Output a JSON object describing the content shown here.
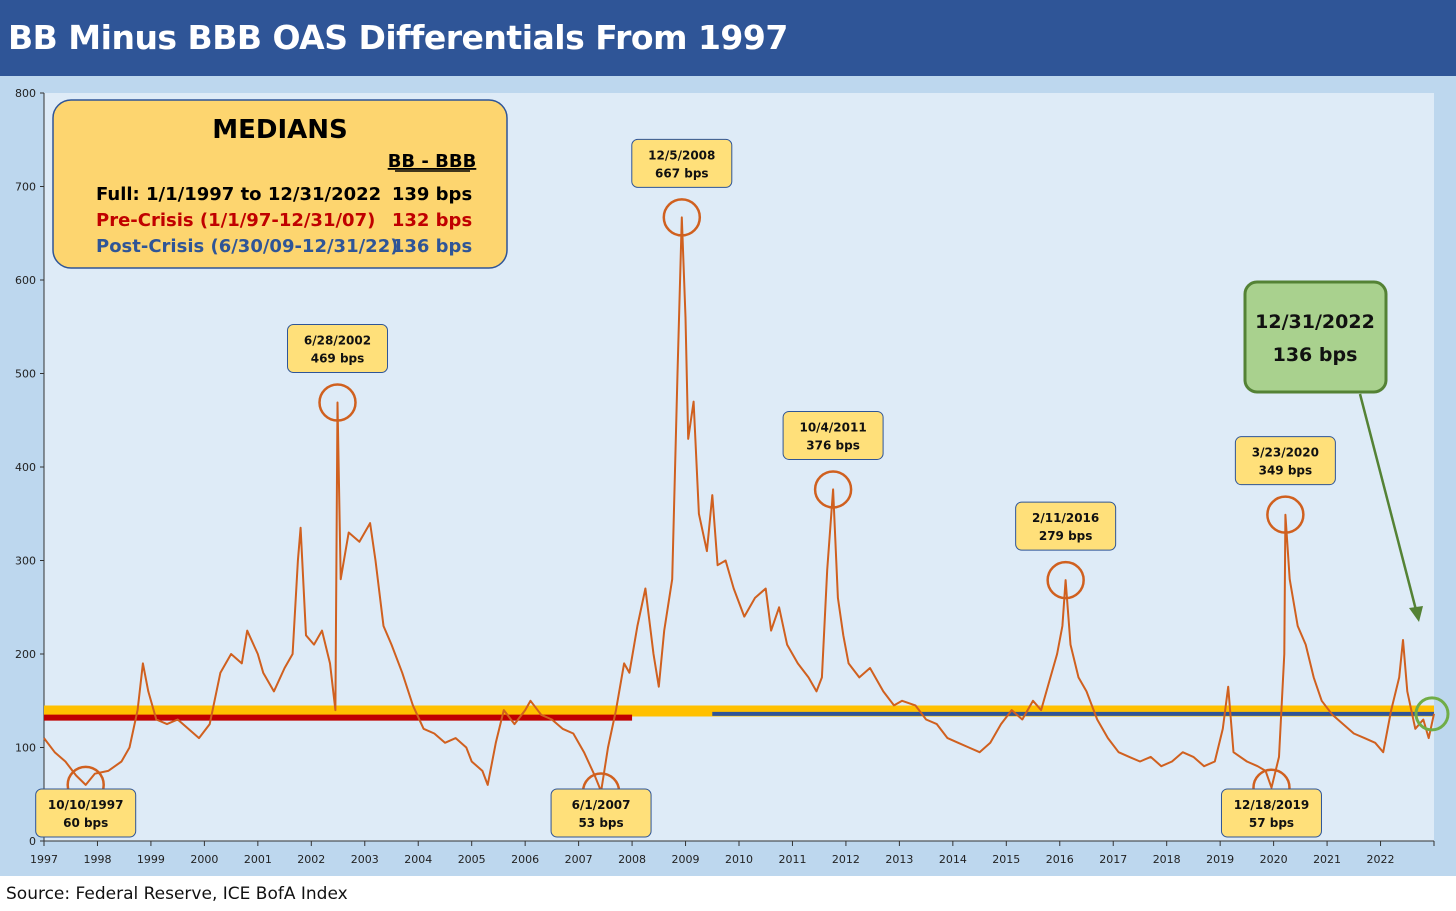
{
  "title": "BB Minus BBB OAS Differentials From 1997",
  "source": "Source: Federal Reserve, ICE BofA Index",
  "colors": {
    "title_bar": "#2f5597",
    "frame": "#bdd7ee",
    "plot_bg": "#deebf7",
    "series": "#d0601f",
    "full_median": "#ffc000",
    "pre_crisis": "#c00000",
    "post_crisis": "#2f5597",
    "callout_fill": "#ffe07a",
    "final_box": "#a9d18e",
    "final_border": "#548235"
  },
  "medians_box": {
    "title": "MEDIANS",
    "column_header": "BB - BBB",
    "rows": [
      {
        "label": "Full: 1/1/1997 to 12/31/2022",
        "value": "139 bps",
        "color": "#000000"
      },
      {
        "label": "Pre-Crisis (1/1/97-12/31/07)",
        "value": "132 bps",
        "color": "#c00000"
      },
      {
        "label": "Post-Crisis (6/30/09-12/31/22)",
        "value": "136 bps",
        "color": "#2f5597"
      }
    ]
  },
  "callouts": [
    {
      "date": "10/10/1997",
      "value": "60 bps",
      "x": 1997.78,
      "y": 60,
      "box": "below"
    },
    {
      "date": "6/28/2002",
      "value": "469 bps",
      "x": 2002.49,
      "y": 469,
      "box": "above"
    },
    {
      "date": "12/5/2008",
      "value": "667 bps",
      "x": 2008.93,
      "y": 667,
      "box": "above"
    },
    {
      "date": "6/1/2007",
      "value": "53 bps",
      "x": 2007.42,
      "y": 53,
      "box": "below"
    },
    {
      "date": "10/4/2011",
      "value": "376 bps",
      "x": 2011.76,
      "y": 376,
      "box": "above"
    },
    {
      "date": "2/11/2016",
      "value": "279 bps",
      "x": 2016.11,
      "y": 279,
      "box": "above"
    },
    {
      "date": "3/23/2020",
      "value": "349 bps",
      "x": 2020.22,
      "y": 349,
      "box": "above"
    },
    {
      "date": "12/18/2019",
      "value": "57 bps",
      "x": 2019.96,
      "y": 57,
      "box": "below"
    }
  ],
  "final_callout": {
    "date": "12/31/2022",
    "value": "136 bps",
    "x": 2023.0,
    "y": 136
  },
  "chart_data": {
    "type": "line",
    "title": "BB Minus BBB OAS Differentials From 1997",
    "xlabel": "",
    "ylabel": "",
    "xlim": [
      1997,
      2023
    ],
    "ylim": [
      0,
      800
    ],
    "y_ticks": [
      0,
      100,
      200,
      300,
      400,
      500,
      600,
      700,
      800
    ],
    "x_ticks": [
      "1997",
      "1998",
      "1999",
      "2000",
      "2001",
      "2002",
      "2003",
      "2004",
      "2005",
      "2006",
      "2007",
      "2008",
      "2009",
      "2010",
      "2011",
      "2012",
      "2013",
      "2014",
      "2015",
      "2016",
      "2017",
      "2018",
      "2019",
      "2020",
      "2021",
      "2022"
    ],
    "grid": false,
    "series": [
      {
        "values": [
          [
            1997.0,
            110
          ],
          [
            1997.2,
            95
          ],
          [
            1997.4,
            85
          ],
          [
            1997.6,
            70
          ],
          [
            1997.78,
            60
          ],
          [
            1997.95,
            72
          ],
          [
            1998.2,
            75
          ],
          [
            1998.45,
            85
          ],
          [
            1998.6,
            100
          ],
          [
            1998.75,
            140
          ],
          [
            1998.85,
            190
          ],
          [
            1998.95,
            160
          ],
          [
            1999.1,
            130
          ],
          [
            1999.3,
            125
          ],
          [
            1999.5,
            130
          ],
          [
            1999.7,
            120
          ],
          [
            1999.9,
            110
          ],
          [
            2000.1,
            125
          ],
          [
            2000.3,
            180
          ],
          [
            2000.5,
            200
          ],
          [
            2000.7,
            190
          ],
          [
            2000.8,
            225
          ],
          [
            2001.0,
            200
          ],
          [
            2001.1,
            180
          ],
          [
            2001.3,
            160
          ],
          [
            2001.5,
            185
          ],
          [
            2001.65,
            200
          ],
          [
            2001.75,
            300
          ],
          [
            2001.8,
            335
          ],
          [
            2001.9,
            220
          ],
          [
            2002.05,
            210
          ],
          [
            2002.2,
            225
          ],
          [
            2002.35,
            190
          ],
          [
            2002.45,
            140
          ],
          [
            2002.49,
            469
          ],
          [
            2002.55,
            280
          ],
          [
            2002.7,
            330
          ],
          [
            2002.9,
            320
          ],
          [
            2003.1,
            340
          ],
          [
            2003.2,
            300
          ],
          [
            2003.35,
            230
          ],
          [
            2003.5,
            210
          ],
          [
            2003.7,
            180
          ],
          [
            2003.9,
            145
          ],
          [
            2004.1,
            120
          ],
          [
            2004.3,
            115
          ],
          [
            2004.5,
            105
          ],
          [
            2004.7,
            110
          ],
          [
            2004.9,
            100
          ],
          [
            2005.0,
            85
          ],
          [
            2005.2,
            75
          ],
          [
            2005.3,
            60
          ],
          [
            2005.45,
            105
          ],
          [
            2005.6,
            140
          ],
          [
            2005.8,
            125
          ],
          [
            2006.0,
            140
          ],
          [
            2006.1,
            150
          ],
          [
            2006.3,
            135
          ],
          [
            2006.5,
            130
          ],
          [
            2006.7,
            120
          ],
          [
            2006.9,
            115
          ],
          [
            2007.1,
            95
          ],
          [
            2007.3,
            70
          ],
          [
            2007.42,
            53
          ],
          [
            2007.55,
            100
          ],
          [
            2007.7,
            140
          ],
          [
            2007.85,
            190
          ],
          [
            2007.95,
            180
          ],
          [
            2008.1,
            230
          ],
          [
            2008.25,
            270
          ],
          [
            2008.4,
            200
          ],
          [
            2008.5,
            165
          ],
          [
            2008.6,
            225
          ],
          [
            2008.75,
            280
          ],
          [
            2008.85,
            500
          ],
          [
            2008.93,
            667
          ],
          [
            2009.0,
            560
          ],
          [
            2009.05,
            430
          ],
          [
            2009.15,
            470
          ],
          [
            2009.25,
            350
          ],
          [
            2009.4,
            310
          ],
          [
            2009.5,
            370
          ],
          [
            2009.6,
            295
          ],
          [
            2009.75,
            300
          ],
          [
            2009.9,
            270
          ],
          [
            2010.1,
            240
          ],
          [
            2010.3,
            260
          ],
          [
            2010.5,
            270
          ],
          [
            2010.6,
            225
          ],
          [
            2010.75,
            250
          ],
          [
            2010.9,
            210
          ],
          [
            2011.1,
            190
          ],
          [
            2011.3,
            175
          ],
          [
            2011.45,
            160
          ],
          [
            2011.55,
            175
          ],
          [
            2011.65,
            290
          ],
          [
            2011.76,
            376
          ],
          [
            2011.85,
            260
          ],
          [
            2011.95,
            220
          ],
          [
            2012.05,
            190
          ],
          [
            2012.25,
            175
          ],
          [
            2012.45,
            185
          ],
          [
            2012.7,
            160
          ],
          [
            2012.9,
            145
          ],
          [
            2013.05,
            150
          ],
          [
            2013.3,
            145
          ],
          [
            2013.5,
            130
          ],
          [
            2013.7,
            125
          ],
          [
            2013.9,
            110
          ],
          [
            2014.1,
            105
          ],
          [
            2014.3,
            100
          ],
          [
            2014.5,
            95
          ],
          [
            2014.7,
            105
          ],
          [
            2014.9,
            125
          ],
          [
            2015.1,
            140
          ],
          [
            2015.3,
            130
          ],
          [
            2015.5,
            150
          ],
          [
            2015.65,
            140
          ],
          [
            2015.8,
            170
          ],
          [
            2015.95,
            200
          ],
          [
            2016.05,
            230
          ],
          [
            2016.11,
            279
          ],
          [
            2016.2,
            210
          ],
          [
            2016.35,
            175
          ],
          [
            2016.5,
            160
          ],
          [
            2016.7,
            130
          ],
          [
            2016.9,
            110
          ],
          [
            2017.1,
            95
          ],
          [
            2017.3,
            90
          ],
          [
            2017.5,
            85
          ],
          [
            2017.7,
            90
          ],
          [
            2017.9,
            80
          ],
          [
            2018.1,
            85
          ],
          [
            2018.3,
            95
          ],
          [
            2018.5,
            90
          ],
          [
            2018.7,
            80
          ],
          [
            2018.9,
            85
          ],
          [
            2019.05,
            120
          ],
          [
            2019.15,
            165
          ],
          [
            2019.25,
            95
          ],
          [
            2019.5,
            85
          ],
          [
            2019.7,
            80
          ],
          [
            2019.85,
            75
          ],
          [
            2019.96,
            57
          ],
          [
            2020.1,
            90
          ],
          [
            2020.2,
            200
          ],
          [
            2020.22,
            349
          ],
          [
            2020.3,
            280
          ],
          [
            2020.45,
            230
          ],
          [
            2020.6,
            210
          ],
          [
            2020.75,
            175
          ],
          [
            2020.9,
            150
          ],
          [
            2021.1,
            135
          ],
          [
            2021.3,
            125
          ],
          [
            2021.5,
            115
          ],
          [
            2021.7,
            110
          ],
          [
            2021.9,
            105
          ],
          [
            2022.05,
            95
          ],
          [
            2022.2,
            140
          ],
          [
            2022.35,
            175
          ],
          [
            2022.42,
            215
          ],
          [
            2022.5,
            160
          ],
          [
            2022.65,
            120
          ],
          [
            2022.8,
            130
          ],
          [
            2022.9,
            110
          ],
          [
            2023.0,
            136
          ]
        ]
      }
    ],
    "reference_lines": [
      {
        "name": "Full",
        "value": 139,
        "x_range": [
          1997,
          2023
        ],
        "color": "#ffc000"
      },
      {
        "name": "Pre-Crisis",
        "value": 132,
        "x_range": [
          1997,
          2008.0
        ],
        "color": "#c00000"
      },
      {
        "name": "Post-Crisis",
        "value": 136,
        "x_range": [
          2009.5,
          2023
        ],
        "color": "#2f5597"
      }
    ]
  }
}
